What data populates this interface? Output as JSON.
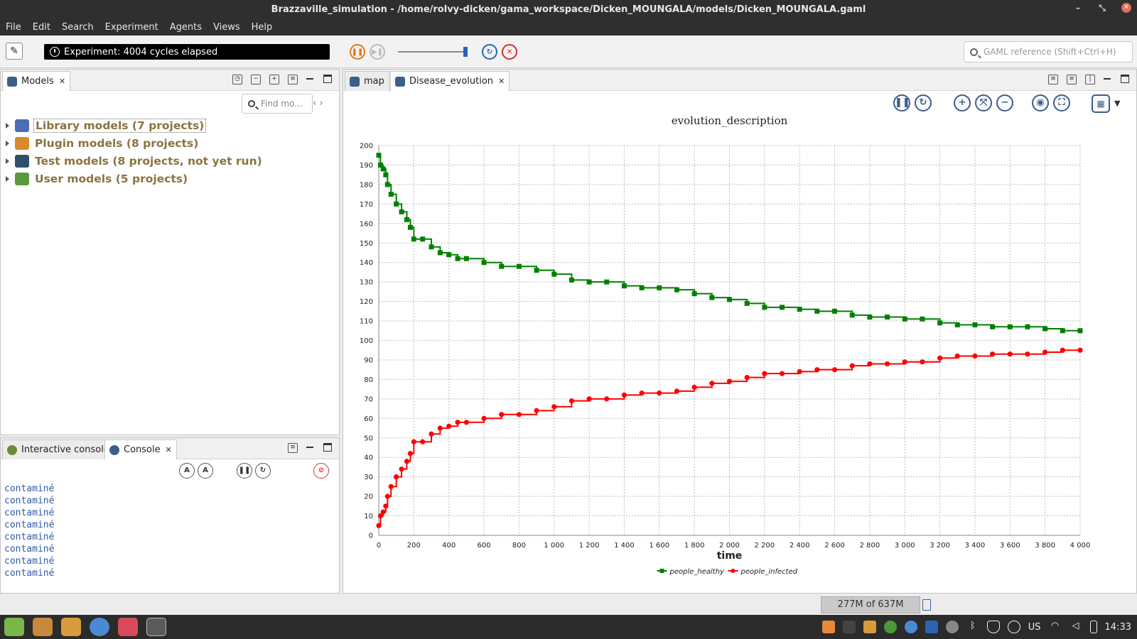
{
  "window": {
    "title": "Brazzaville_simulation - /home/rolvy-dicken/gama_workspace/Dicken_MOUNGALA/models/Dicken_MOUNGALA.gaml"
  },
  "menu": [
    "File",
    "Edit",
    "Search",
    "Experiment",
    "Agents",
    "Views",
    "Help"
  ],
  "toolbar": {
    "status": "Experiment: 4004 cycles elapsed",
    "search_placeholder": "GAML reference (Shift+Ctrl+H)"
  },
  "models_panel": {
    "tab_label": "Models",
    "find_placeholder": "Find mo...",
    "tree": [
      {
        "label": "Library models (7 projects)",
        "icon": "library-icon",
        "color": "#4a6fb5",
        "selected": true
      },
      {
        "label": "Plugin models (8 projects)",
        "icon": "plugin-icon",
        "color": "#d98a2a",
        "selected": false
      },
      {
        "label": "Test models (8 projects, not yet run)",
        "icon": "test-icon",
        "color": "#2f4f6e",
        "selected": false
      },
      {
        "label": "User models (5 projects)",
        "icon": "user-icon",
        "color": "#5a9a3a",
        "selected": false
      }
    ]
  },
  "console_panel": {
    "tabs": [
      "Interactive console",
      "Console"
    ],
    "lines": [
      "contaminé",
      "contaminé",
      "contaminé",
      "contaminé",
      "contaminé",
      "contaminé",
      "contaminé",
      "contaminé"
    ]
  },
  "editor_tabs": [
    "map",
    "Disease_evolution"
  ],
  "chart_data": {
    "type": "line",
    "title": "evolution_description",
    "xlabel": "time",
    "ylabel": "",
    "xlim": [
      0,
      4000
    ],
    "ylim": [
      0,
      200
    ],
    "x_ticks": [
      "0",
      "200",
      "400",
      "600",
      "800",
      "1 000",
      "1 200",
      "1 400",
      "1 600",
      "1 800",
      "2 000",
      "2 200",
      "2 400",
      "2 600",
      "2 800",
      "3 000",
      "3 200",
      "3 400",
      "3 600",
      "3 800",
      "4 000"
    ],
    "y_ticks": [
      "0",
      "10",
      "20",
      "30",
      "40",
      "50",
      "60",
      "70",
      "80",
      "90",
      "100",
      "110",
      "120",
      "130",
      "140",
      "150",
      "160",
      "170",
      "180",
      "190",
      "200"
    ],
    "grid": true,
    "legend_position": "bottom-center",
    "series": [
      {
        "name": "people_healthy",
        "color": "#008000",
        "marker": "square",
        "x": [
          0,
          10,
          25,
          40,
          50,
          70,
          100,
          130,
          160,
          180,
          200,
          250,
          300,
          350,
          400,
          450,
          500,
          600,
          700,
          800,
          900,
          1000,
          1100,
          1200,
          1300,
          1400,
          1500,
          1600,
          1700,
          1800,
          1900,
          2000,
          2100,
          2200,
          2300,
          2400,
          2500,
          2600,
          2700,
          2800,
          2900,
          3000,
          3100,
          3200,
          3300,
          3400,
          3500,
          3600,
          3700,
          3800,
          3900,
          4000
        ],
        "values": [
          195,
          190,
          188,
          185,
          180,
          175,
          170,
          166,
          162,
          158,
          152,
          152,
          148,
          145,
          144,
          142,
          142,
          140,
          138,
          138,
          136,
          134,
          131,
          130,
          130,
          128,
          127,
          127,
          126,
          124,
          122,
          121,
          119,
          117,
          117,
          116,
          115,
          115,
          113,
          112,
          112,
          111,
          111,
          109,
          108,
          108,
          107,
          107,
          107,
          106,
          105,
          105
        ]
      },
      {
        "name": "people_infected",
        "color": "#ff0000",
        "marker": "circle",
        "x": [
          0,
          10,
          25,
          40,
          50,
          70,
          100,
          130,
          160,
          180,
          200,
          250,
          300,
          350,
          400,
          450,
          500,
          600,
          700,
          800,
          900,
          1000,
          1100,
          1200,
          1300,
          1400,
          1500,
          1600,
          1700,
          1800,
          1900,
          2000,
          2100,
          2200,
          2300,
          2400,
          2500,
          2600,
          2700,
          2800,
          2900,
          3000,
          3100,
          3200,
          3300,
          3400,
          3500,
          3600,
          3700,
          3800,
          3900,
          4000
        ],
        "values": [
          5,
          10,
          12,
          15,
          20,
          25,
          30,
          34,
          38,
          42,
          48,
          48,
          52,
          55,
          56,
          58,
          58,
          60,
          62,
          62,
          64,
          66,
          69,
          70,
          70,
          72,
          73,
          73,
          74,
          76,
          78,
          79,
          81,
          83,
          83,
          84,
          85,
          85,
          87,
          88,
          88,
          89,
          89,
          91,
          92,
          92,
          93,
          93,
          93,
          94,
          95,
          95
        ]
      }
    ]
  },
  "statusbar": {
    "memory": "277M of 637M"
  },
  "taskbar": {
    "keyboard_layout": "US",
    "clock": "14:33"
  },
  "colors": {
    "accent": "#3c5e8c",
    "titlebar": "#2f2f2f"
  }
}
